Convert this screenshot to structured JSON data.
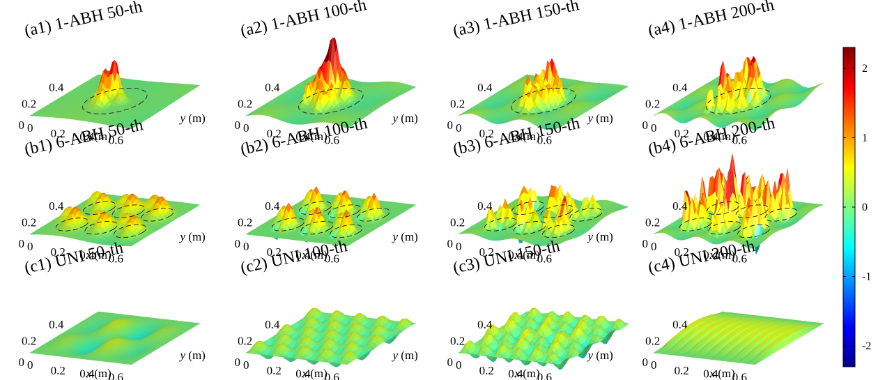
{
  "figure": {
    "colormap": [
      "#00008f",
      "#0000ff",
      "#0080ff",
      "#00ffff",
      "#80ff80",
      "#ffff00",
      "#ff8000",
      "#ff0000",
      "#800000"
    ],
    "colorbar": {
      "range": [
        -2.3,
        2.3
      ],
      "ticks": [
        "2",
        "1",
        "0",
        "-1",
        "-2"
      ],
      "tick_values": [
        2,
        1,
        0,
        -1,
        -2
      ]
    }
  },
  "chart_data": [
    {
      "type": "surface",
      "title": "(a1) 1-ABH 50-th",
      "xlabel": "x (m)",
      "ylabel": "y (m)",
      "xticks": [
        "0",
        "0.2",
        "0.4",
        "0.6"
      ],
      "yticks": [
        "0",
        "0.2",
        "0.4"
      ],
      "xlim": [
        0,
        0.7
      ],
      "ylim": [
        0,
        0.5
      ],
      "abh_circles": 1,
      "max_amplitude": 2.2
    },
    {
      "type": "surface",
      "title": "(a2) 1-ABH 100-th",
      "xlabel": "x (m)",
      "ylabel": "y (m)",
      "xticks": [
        "0",
        "0.2",
        "0.4",
        "0.6"
      ],
      "yticks": [
        "0",
        "0.2",
        "0.4"
      ],
      "xlim": [
        0,
        0.7
      ],
      "ylim": [
        0,
        0.5
      ],
      "abh_circles": 1,
      "max_amplitude": 1.6
    },
    {
      "type": "surface",
      "title": "(a3) 1-ABH 150-th",
      "xlabel": "x (m)",
      "ylabel": "y (m)",
      "xticks": [
        "0",
        "0.2",
        "0.4",
        "0.6"
      ],
      "yticks": [
        "0",
        "0.2",
        "0.4"
      ],
      "xlim": [
        0,
        0.7
      ],
      "ylim": [
        0,
        0.5
      ],
      "abh_circles": 1,
      "max_amplitude": 1.3
    },
    {
      "type": "surface",
      "title": "(a4) 1-ABH 200-th",
      "xlabel": "x (m)",
      "ylabel": "y (m)",
      "xticks": [
        "0",
        "0.2",
        "0.4",
        "0.6"
      ],
      "yticks": [
        "0",
        "0.2",
        "0.4"
      ],
      "xlim": [
        0,
        0.7
      ],
      "ylim": [
        0,
        0.5
      ],
      "abh_circles": 1,
      "max_amplitude": 1.4
    },
    {
      "type": "surface",
      "title": "(b1) 6-ABH 50-th",
      "xlabel": "x (m)",
      "ylabel": "y (m)",
      "xticks": [
        "0",
        "0.2",
        "0.4",
        "0.6"
      ],
      "yticks": [
        "0",
        "0.2",
        "0.4"
      ],
      "xlim": [
        0,
        0.7
      ],
      "ylim": [
        0,
        0.5
      ],
      "abh_circles": 6,
      "max_amplitude": 1.3
    },
    {
      "type": "surface",
      "title": "(b2) 6-ABH 100-th",
      "xlabel": "x (m)",
      "ylabel": "y (m)",
      "xticks": [
        "0",
        "0.2",
        "0.4",
        "0.6"
      ],
      "yticks": [
        "0",
        "0.2",
        "0.4"
      ],
      "xlim": [
        0,
        0.7
      ],
      "ylim": [
        0,
        0.5
      ],
      "abh_circles": 6,
      "max_amplitude": 1.6
    },
    {
      "type": "surface",
      "title": "(b3) 6-ABH 150-th",
      "xlabel": "x (m)",
      "ylabel": "y (m)",
      "xticks": [
        "0",
        "0.2",
        "0.4",
        "0.6"
      ],
      "yticks": [
        "0",
        "0.2",
        "0.4"
      ],
      "xlim": [
        0,
        0.7
      ],
      "ylim": [
        0,
        0.5
      ],
      "abh_circles": 6,
      "max_amplitude": 1.4
    },
    {
      "type": "surface",
      "title": "(b4) 6-ABH 200-th",
      "xlabel": "x (m)",
      "ylabel": "y (m)",
      "xticks": [
        "0",
        "0.2",
        "0.4",
        "0.6"
      ],
      "yticks": [
        "0",
        "0.2",
        "0.4"
      ],
      "xlim": [
        0,
        0.7
      ],
      "ylim": [
        0,
        0.5
      ],
      "abh_circles": 6,
      "max_amplitude": 2.0
    },
    {
      "type": "surface",
      "title": "(c1) UNI 50-th",
      "xlabel": "x (m)",
      "ylabel": "y (m)",
      "xticks": [
        "0",
        "0.2",
        "0.4",
        "0.6"
      ],
      "yticks": [
        "0",
        "0.2",
        "0.4"
      ],
      "xlim": [
        0,
        0.7
      ],
      "ylim": [
        0,
        0.5
      ],
      "abh_circles": 0,
      "max_amplitude": 0.4
    },
    {
      "type": "surface",
      "title": "(c2) UNI 100-th",
      "xlabel": "x (m)",
      "ylabel": "y (m)",
      "xticks": [
        "0",
        "0.2",
        "0.4",
        "0.6"
      ],
      "yticks": [
        "0",
        "0.2",
        "0.4"
      ],
      "xlim": [
        0,
        0.7
      ],
      "ylim": [
        0,
        0.5
      ],
      "abh_circles": 0,
      "max_amplitude": 0.5
    },
    {
      "type": "surface",
      "title": "(c3) UNI 150-th",
      "xlabel": "x (m)",
      "ylabel": "y (m)",
      "xticks": [
        "0",
        "0.2",
        "0.4",
        "0.6"
      ],
      "yticks": [
        "0",
        "0.2",
        "0.4"
      ],
      "xlim": [
        0,
        0.7
      ],
      "ylim": [
        0,
        0.5
      ],
      "abh_circles": 0,
      "max_amplitude": 0.6
    },
    {
      "type": "surface",
      "title": "(c4) UNI 200-th",
      "xlabel": "x (m)",
      "ylabel": "y (m)",
      "xticks": [
        "0",
        "0.2",
        "0.4",
        "0.6"
      ],
      "yticks": [
        "0",
        "0.2",
        "0.4"
      ],
      "xlim": [
        0,
        0.7
      ],
      "ylim": [
        0,
        0.5
      ],
      "abh_circles": 0,
      "max_amplitude": 0.6
    }
  ]
}
